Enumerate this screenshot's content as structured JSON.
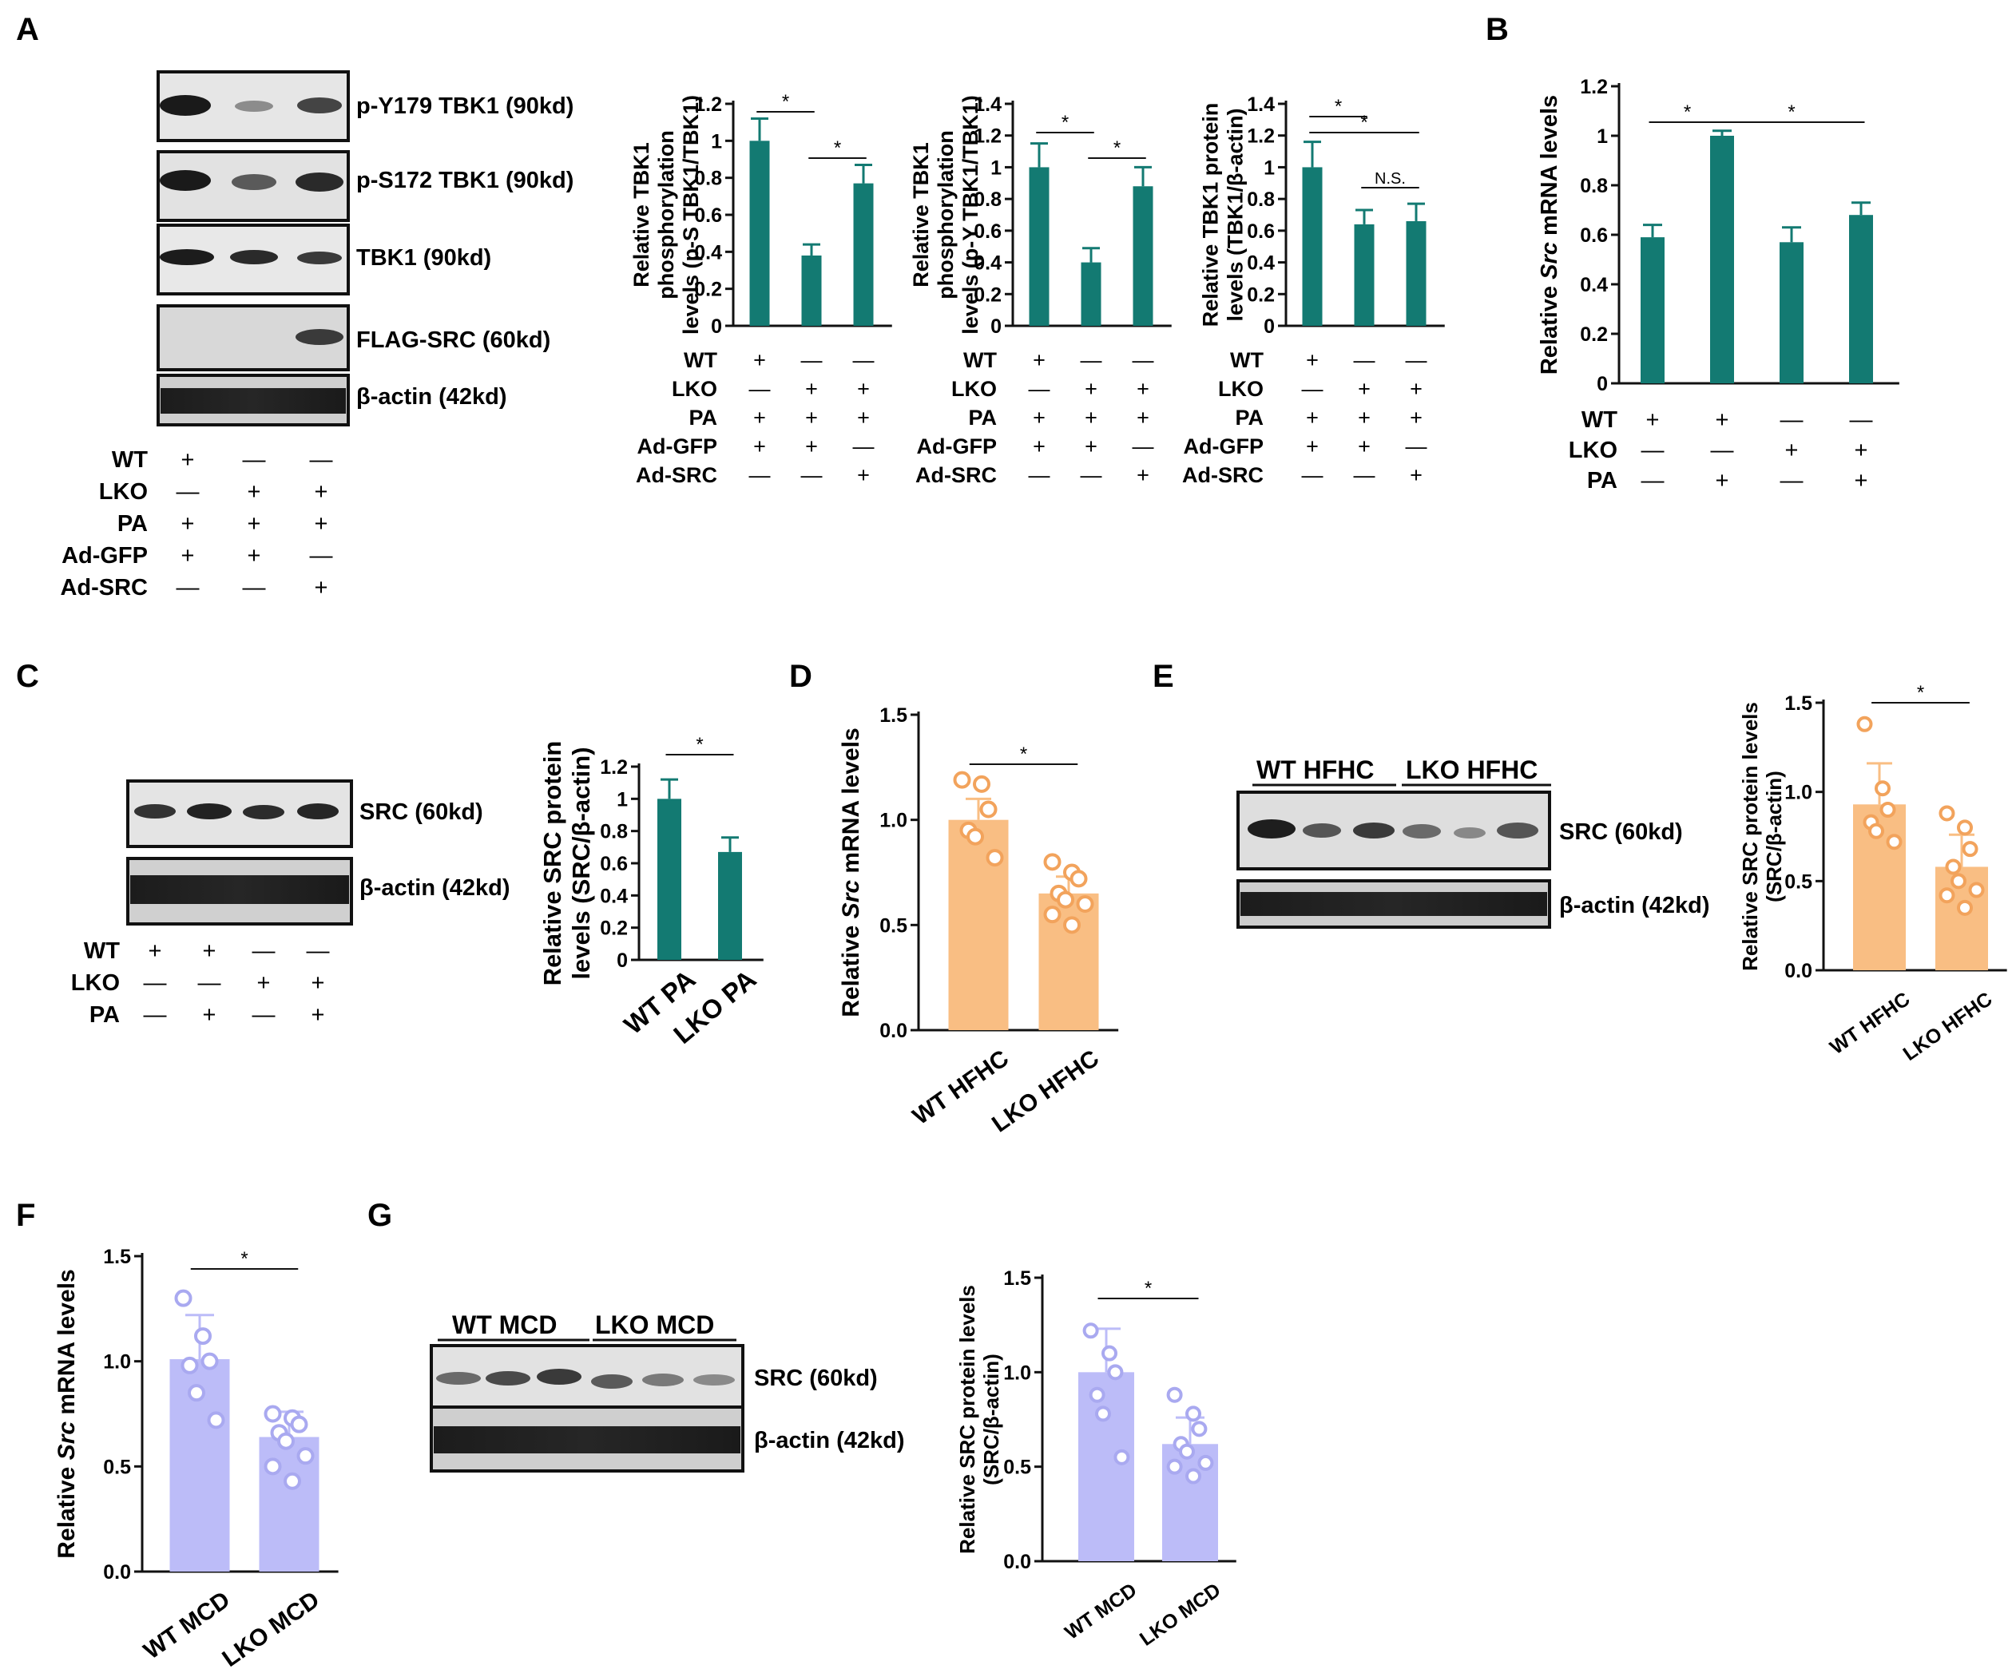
{
  "panel_letters": [
    "A",
    "B",
    "C",
    "D",
    "E",
    "F",
    "G"
  ],
  "colors": {
    "teal": "#137a72",
    "orange": "#f9be83",
    "orange_dot": "#f2a35c",
    "lavender": "#bcbcf8",
    "lavender_dot": "#a9a9f0"
  },
  "blots": {
    "A": {
      "bands": [
        "p-Y179 TBK1 (90kd)",
        "p-S172 TBK1 (90kd)",
        "TBK1 (90kd)",
        "FLAG-SRC (60kd)",
        "β-actin (42kd)"
      ]
    },
    "C": {
      "bands": [
        "SRC (60kd)",
        "β-actin (42kd)"
      ]
    },
    "E": {
      "bands": [
        "SRC (60kd)",
        "β-actin (42kd)"
      ],
      "groups": [
        "WT HFHC",
        "LKO HFHC"
      ]
    },
    "G": {
      "bands": [
        "SRC (60kd)",
        "β-actin (42kd)"
      ],
      "groups": [
        "WT MCD",
        "LKO MCD"
      ]
    }
  },
  "condition_tables": {
    "A": {
      "rows": [
        {
          "label": "WT",
          "signs": [
            "+",
            "—",
            "—"
          ]
        },
        {
          "label": "LKO",
          "signs": [
            "—",
            "+",
            "+"
          ]
        },
        {
          "label": "PA",
          "signs": [
            "+",
            "+",
            "+"
          ]
        },
        {
          "label": "Ad-GFP",
          "signs": [
            "+",
            "+",
            "—"
          ]
        },
        {
          "label": "Ad-SRC",
          "signs": [
            "—",
            "—",
            "+"
          ]
        }
      ]
    },
    "C": {
      "rows": [
        {
          "label": "WT",
          "signs": [
            "+",
            "+",
            "—",
            "—"
          ]
        },
        {
          "label": "LKO",
          "signs": [
            "—",
            "—",
            "+",
            "+"
          ]
        },
        {
          "label": "PA",
          "signs": [
            "—",
            "+",
            "—",
            "+"
          ]
        }
      ]
    },
    "B": {
      "rows": [
        {
          "label": "WT",
          "signs": [
            "+",
            "+",
            "—",
            "—"
          ]
        },
        {
          "label": "LKO",
          "signs": [
            "—",
            "—",
            "+",
            "+"
          ]
        },
        {
          "label": "PA",
          "signs": [
            "—",
            "+",
            "—",
            "+"
          ]
        }
      ]
    }
  },
  "chart_data": [
    {
      "id": "A1",
      "type": "bar",
      "ylabel": [
        "Relative TBK1",
        "phosphorylation",
        "levels (p-S TBK1/TBK1)"
      ],
      "ylim": [
        0,
        1.2
      ],
      "yticks": [
        0,
        0.2,
        0.4,
        0.6,
        0.8,
        1,
        1.2
      ],
      "ytick_labels": [
        "0",
        "0.2",
        "0.4",
        "0.6",
        "0.8",
        "1",
        "1.2"
      ],
      "values": [
        1.0,
        0.38,
        0.77
      ],
      "errors": [
        0.12,
        0.06,
        0.1
      ],
      "significance": [
        {
          "from": 0,
          "to": 1,
          "label": "*"
        },
        {
          "from": 1,
          "to": 2,
          "label": "*"
        }
      ]
    },
    {
      "id": "A2",
      "type": "bar",
      "ylabel": [
        "Relative TBK1",
        "phosphorylation",
        "levels (p-Y TBK1/TBK1)"
      ],
      "ylim": [
        0,
        1.4
      ],
      "yticks": [
        0,
        0.2,
        0.4,
        0.6,
        0.8,
        1,
        1.2,
        1.4
      ],
      "ytick_labels": [
        "0",
        "0.2",
        "0.4",
        "0.6",
        "0.8",
        "1",
        "1.2",
        "1.4"
      ],
      "values": [
        1.0,
        0.4,
        0.88
      ],
      "errors": [
        0.15,
        0.09,
        0.12
      ],
      "significance": [
        {
          "from": 0,
          "to": 1,
          "label": "*"
        },
        {
          "from": 1,
          "to": 2,
          "label": "*"
        }
      ]
    },
    {
      "id": "A3",
      "type": "bar",
      "ylabel": [
        "Relative TBK1 protein",
        "levels (TBK1/β-actin)"
      ],
      "ylim": [
        0,
        1.4
      ],
      "yticks": [
        0,
        0.2,
        0.4,
        0.6,
        0.8,
        1,
        1.2,
        1.4
      ],
      "ytick_labels": [
        "0",
        "0.2",
        "0.4",
        "0.6",
        "0.8",
        "1",
        "1.2",
        "1.4"
      ],
      "values": [
        1.0,
        0.64,
        0.66
      ],
      "errors": [
        0.16,
        0.09,
        0.11
      ],
      "significance": [
        {
          "from": 0,
          "to": 1,
          "label": "*"
        },
        {
          "from": 0,
          "to": 2,
          "label": "*"
        },
        {
          "from": 1,
          "to": 2,
          "label": "N.S."
        }
      ]
    },
    {
      "id": "B",
      "type": "bar",
      "ylabel": [
        "Relative Src mRNA levels"
      ],
      "ylim": [
        0,
        1.2
      ],
      "yticks": [
        0,
        0.2,
        0.4,
        0.6,
        0.8,
        1,
        1.2
      ],
      "ytick_labels": [
        "0",
        "0.2",
        "0.4",
        "0.6",
        "0.8",
        "1",
        "1.2"
      ],
      "values": [
        0.59,
        1.0,
        0.57,
        0.68
      ],
      "errors": [
        0.05,
        0.02,
        0.06,
        0.05
      ],
      "significance": [
        {
          "from": 0,
          "to": 1,
          "label": "*"
        },
        {
          "from": 1,
          "to": 3,
          "label": "*"
        }
      ]
    },
    {
      "id": "C",
      "type": "bar",
      "ylabel": [
        "Relative SRC protein",
        "levels (SRC/β-actin)"
      ],
      "categories": [
        "WT PA",
        "LKO PA"
      ],
      "ylim": [
        0,
        1.2
      ],
      "yticks": [
        0,
        0.2,
        0.4,
        0.6,
        0.8,
        1,
        1.2
      ],
      "ytick_labels": [
        "0",
        "0.2",
        "0.4",
        "0.6",
        "0.8",
        "1",
        "1.2"
      ],
      "values": [
        1.0,
        0.67
      ],
      "errors": [
        0.12,
        0.09
      ],
      "significance": [
        {
          "from": 0,
          "to": 1,
          "label": "*"
        }
      ]
    },
    {
      "id": "D",
      "type": "bar",
      "ylabel": [
        "Relative Src mRNA levels"
      ],
      "categories": [
        "WT HFHC",
        "LKO HFHC"
      ],
      "ylim": [
        0,
        1.5
      ],
      "yticks": [
        0,
        0.5,
        1.0,
        1.5
      ],
      "ytick_labels": [
        "0.0",
        "0.5",
        "1.0",
        "1.5"
      ],
      "values": [
        1.0,
        0.65
      ],
      "errors": [
        0.1,
        0.08
      ],
      "points": [
        [
          1.19,
          1.17,
          1.05,
          0.95,
          0.92,
          0.82
        ],
        [
          0.8,
          0.75,
          0.72,
          0.65,
          0.62,
          0.6,
          0.55,
          0.5
        ]
      ],
      "significance": [
        {
          "from": 0,
          "to": 1,
          "label": "*"
        }
      ]
    },
    {
      "id": "E",
      "type": "bar",
      "ylabel": [
        "Relative SRC protein levels",
        "(SRC/β-actin)"
      ],
      "categories": [
        "WT HFHC",
        "LKO HFHC"
      ],
      "ylim": [
        0,
        1.5
      ],
      "yticks": [
        0,
        0.5,
        1.0,
        1.5
      ],
      "ytick_labels": [
        "0.0",
        "0.5",
        "1.0",
        "1.5"
      ],
      "values": [
        0.93,
        0.58
      ],
      "errors": [
        0.23,
        0.18
      ],
      "points": [
        [
          1.38,
          1.02,
          0.9,
          0.83,
          0.78,
          0.72
        ],
        [
          0.88,
          0.8,
          0.68,
          0.58,
          0.5,
          0.45,
          0.42,
          0.35
        ]
      ],
      "significance": [
        {
          "from": 0,
          "to": 1,
          "label": "*"
        }
      ]
    },
    {
      "id": "F",
      "type": "bar",
      "ylabel": [
        "Relative Src mRNA levels"
      ],
      "categories": [
        "WT MCD",
        "LKO MCD"
      ],
      "ylim": [
        0,
        1.5
      ],
      "yticks": [
        0,
        0.5,
        1.0,
        1.5
      ],
      "ytick_labels": [
        "0.0",
        "0.5",
        "1.0",
        "1.5"
      ],
      "values": [
        1.01,
        0.64
      ],
      "errors": [
        0.21,
        0.12
      ],
      "points": [
        [
          1.3,
          1.12,
          1.0,
          0.98,
          0.85,
          0.72
        ],
        [
          0.75,
          0.73,
          0.7,
          0.66,
          0.62,
          0.55,
          0.5,
          0.43
        ]
      ],
      "significance": [
        {
          "from": 0,
          "to": 1,
          "label": "*"
        }
      ]
    },
    {
      "id": "G",
      "type": "bar",
      "ylabel": [
        "Relative SRC protein levels",
        "(SRC/β-actin)"
      ],
      "categories": [
        "WT MCD",
        "LKO MCD"
      ],
      "ylim": [
        0,
        1.5
      ],
      "yticks": [
        0,
        0.5,
        1.0,
        1.5
      ],
      "ytick_labels": [
        "0.0",
        "0.5",
        "1.0",
        "1.5"
      ],
      "values": [
        1.0,
        0.62
      ],
      "errors": [
        0.23,
        0.14
      ],
      "points": [
        [
          1.22,
          1.1,
          1.0,
          0.88,
          0.78,
          0.55
        ],
        [
          0.88,
          0.78,
          0.7,
          0.62,
          0.58,
          0.52,
          0.5,
          0.45
        ]
      ],
      "significance": [
        {
          "from": 0,
          "to": 1,
          "label": "*"
        }
      ]
    }
  ]
}
